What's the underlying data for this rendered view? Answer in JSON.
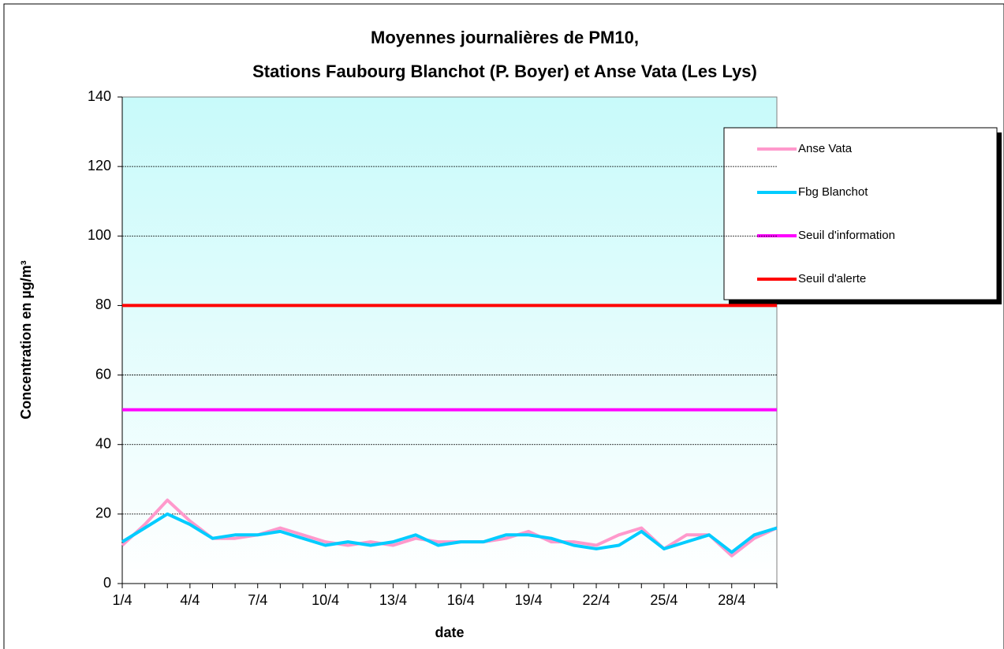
{
  "chart_data": {
    "type": "line",
    "title": "Moyennes journalières de PM10,",
    "subtitle": "Stations Faubourg Blanchot (P. Boyer) et Anse Vata (Les Lys)",
    "x_label": "date",
    "y_label": "Concentration en µg/m³",
    "categories": [
      "1/4",
      null,
      null,
      "4/4",
      null,
      null,
      "7/4",
      null,
      null,
      "10/4",
      null,
      null,
      "13/4",
      null,
      null,
      "16/4",
      null,
      null,
      "19/4",
      null,
      null,
      "22/4",
      null,
      null,
      "25/4",
      null,
      null,
      "28/4",
      null,
      null
    ],
    "series": [
      {
        "name": "Anse Vata",
        "color": "#ff99cc",
        "values": [
          11,
          17,
          24,
          18,
          13,
          13,
          14,
          16,
          14,
          12,
          11,
          12,
          11,
          13,
          12,
          12,
          12,
          13,
          15,
          12,
          12,
          11,
          14,
          16,
          10,
          14,
          14,
          8,
          13,
          16
        ]
      },
      {
        "name": "Fbg Blanchot",
        "color": "#00ccff",
        "values": [
          12,
          16,
          20,
          17,
          13,
          14,
          14,
          15,
          13,
          11,
          12,
          11,
          12,
          14,
          11,
          12,
          12,
          14,
          14,
          13,
          11,
          10,
          11,
          15,
          10,
          12,
          14,
          9,
          14,
          16
        ]
      },
      {
        "name": "Seuil d'information",
        "color": "#ff00ff",
        "values": [
          50,
          50,
          50,
          50,
          50,
          50,
          50,
          50,
          50,
          50,
          50,
          50,
          50,
          50,
          50,
          50,
          50,
          50,
          50,
          50,
          50,
          50,
          50,
          50,
          50,
          50,
          50,
          50,
          50,
          50
        ]
      },
      {
        "name": "Seuil d'alerte",
        "color": "#ff0000",
        "values": [
          80,
          80,
          80,
          80,
          80,
          80,
          80,
          80,
          80,
          80,
          80,
          80,
          80,
          80,
          80,
          80,
          80,
          80,
          80,
          80,
          80,
          80,
          80,
          80,
          80,
          80,
          80,
          80,
          80,
          80
        ]
      }
    ],
    "ylim": [
      0,
      140
    ],
    "yticks": [
      0,
      20,
      40,
      60,
      80,
      100,
      120,
      140
    ],
    "grid": true,
    "legend": "right"
  }
}
